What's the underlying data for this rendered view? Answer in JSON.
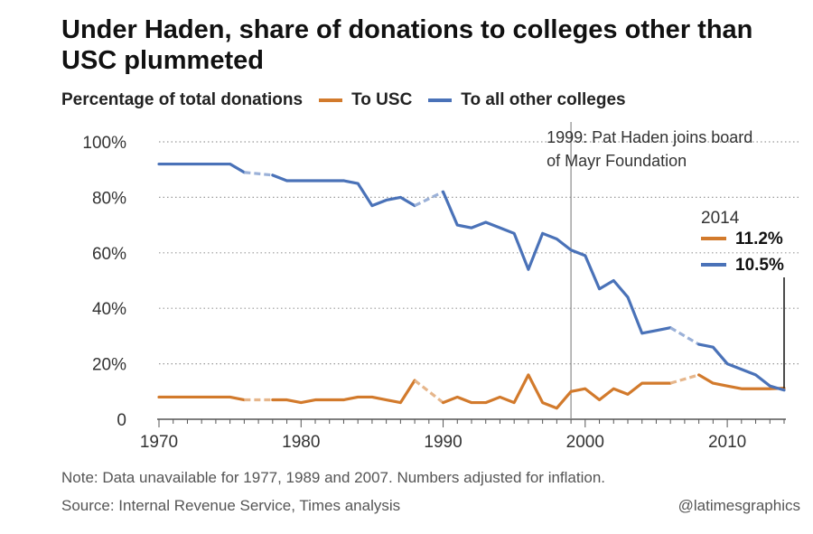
{
  "header": {
    "title": "Under Haden, share of donations to colleges other than USC plummeted"
  },
  "legend": {
    "label": "Percentage of total donations",
    "items": [
      "To USC",
      "To all other colleges"
    ]
  },
  "footer": {
    "note": "Note: Data unavailable for 1977, 1989 and 2007. Numbers adjusted for inflation.",
    "source": "Source: Internal Revenue Service, Times analysis",
    "credit": "@latimesgraphics"
  },
  "chart_data": {
    "type": "line",
    "title": "Under Haden, share of donations to colleges other than USC plummeted",
    "ylabel": "Percentage of total donations",
    "xlim": [
      1970,
      2014
    ],
    "ylim": [
      0,
      100
    ],
    "y_ticks": [
      0,
      20,
      40,
      60,
      80,
      100
    ],
    "y_tick_labels": [
      "0",
      "20%",
      "40%",
      "60%",
      "80%",
      "100%"
    ],
    "x_ticks": [
      1970,
      1980,
      1990,
      2000,
      2010
    ],
    "x_tick_labels": [
      "1970",
      "1980",
      "1990",
      "2000",
      "2010"
    ],
    "grid": "horizontal dotted",
    "legend_position": "top",
    "missing_years": [
      1977,
      1989,
      2007
    ],
    "series": [
      {
        "name": "To USC",
        "color": "#d27a2c",
        "points": [
          [
            1970,
            8
          ],
          [
            1971,
            8
          ],
          [
            1972,
            8
          ],
          [
            1973,
            8
          ],
          [
            1974,
            8
          ],
          [
            1975,
            8
          ],
          [
            1976,
            7
          ],
          [
            1978,
            7
          ],
          [
            1979,
            7
          ],
          [
            1980,
            6
          ],
          [
            1981,
            7
          ],
          [
            1982,
            7
          ],
          [
            1983,
            7
          ],
          [
            1984,
            8
          ],
          [
            1985,
            8
          ],
          [
            1986,
            7
          ],
          [
            1987,
            6
          ],
          [
            1988,
            14
          ],
          [
            1990,
            6
          ],
          [
            1991,
            8
          ],
          [
            1992,
            6
          ],
          [
            1993,
            6
          ],
          [
            1994,
            8
          ],
          [
            1995,
            6
          ],
          [
            1996,
            16
          ],
          [
            1997,
            6
          ],
          [
            1998,
            4
          ],
          [
            1999,
            10
          ],
          [
            2000,
            11
          ],
          [
            2001,
            7
          ],
          [
            2002,
            11
          ],
          [
            2003,
            9
          ],
          [
            2004,
            13
          ],
          [
            2005,
            13
          ],
          [
            2006,
            13
          ],
          [
            2008,
            16
          ],
          [
            2009,
            13
          ],
          [
            2010,
            12
          ],
          [
            2011,
            11
          ],
          [
            2012,
            11
          ],
          [
            2013,
            11
          ],
          [
            2014,
            11.2
          ]
        ]
      },
      {
        "name": "To all other colleges",
        "color": "#4a72b8",
        "points": [
          [
            1970,
            92
          ],
          [
            1971,
            92
          ],
          [
            1972,
            92
          ],
          [
            1973,
            92
          ],
          [
            1974,
            92
          ],
          [
            1975,
            92
          ],
          [
            1976,
            89
          ],
          [
            1978,
            88
          ],
          [
            1979,
            86
          ],
          [
            1980,
            86
          ],
          [
            1981,
            86
          ],
          [
            1982,
            86
          ],
          [
            1983,
            86
          ],
          [
            1984,
            85
          ],
          [
            1985,
            77
          ],
          [
            1986,
            79
          ],
          [
            1987,
            80
          ],
          [
            1988,
            77
          ],
          [
            1990,
            82
          ],
          [
            1991,
            70
          ],
          [
            1992,
            69
          ],
          [
            1993,
            71
          ],
          [
            1994,
            69
          ],
          [
            1995,
            67
          ],
          [
            1996,
            54
          ],
          [
            1997,
            67
          ],
          [
            1998,
            65
          ],
          [
            1999,
            61
          ],
          [
            2000,
            59
          ],
          [
            2001,
            47
          ],
          [
            2002,
            50
          ],
          [
            2003,
            44
          ],
          [
            2004,
            31
          ],
          [
            2005,
            32
          ],
          [
            2006,
            33
          ],
          [
            2008,
            27
          ],
          [
            2009,
            26
          ],
          [
            2010,
            20
          ],
          [
            2011,
            18
          ],
          [
            2012,
            16
          ],
          [
            2013,
            12
          ],
          [
            2014,
            10.5
          ]
        ]
      }
    ],
    "annotations": {
      "event_year": 1999,
      "event_label_line1": "1999: Pat Haden joins board",
      "event_label_line2": "of Mayr Foundation",
      "end_year_label": "2014",
      "end_value_usc": "11.2%",
      "end_value_other": "10.5%"
    }
  }
}
